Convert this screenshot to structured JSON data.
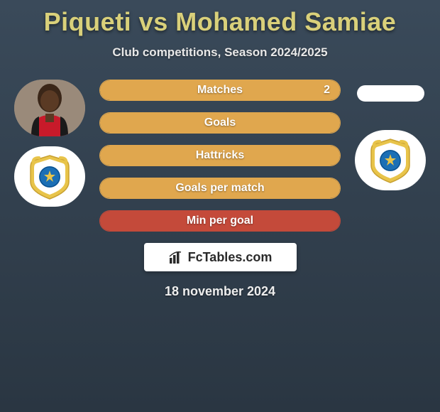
{
  "title": "Piqueti vs Mohamed Samiae",
  "subtitle": "Club competitions, Season 2024/2025",
  "date": "18 november 2024",
  "logo_text": "FcTables.com",
  "colors": {
    "title": "#d9d07a",
    "bar_orange_border": "#e0a74e",
    "bar_orange_fill": "#e0a74e",
    "bar_red_border": "#c44a3a",
    "bar_red_fill": "#c44a3a",
    "bar_bg": "rgba(255,255,255,0.05)",
    "shield_blue": "#1b6fb5",
    "shield_gold": "#e8c44a",
    "shield_white": "#ffffff"
  },
  "bars": [
    {
      "label": "Matches",
      "value": "2",
      "fill_pct": 100,
      "color": "orange"
    },
    {
      "label": "Goals",
      "value": "",
      "fill_pct": 100,
      "color": "orange"
    },
    {
      "label": "Hattricks",
      "value": "",
      "fill_pct": 100,
      "color": "orange"
    },
    {
      "label": "Goals per match",
      "value": "",
      "fill_pct": 100,
      "color": "orange"
    },
    {
      "label": "Min per goal",
      "value": "",
      "fill_pct": 100,
      "color": "red"
    }
  ],
  "left_player": {
    "name": "Piqueti",
    "avatar_bg": "#6a4a3a",
    "jersey": "#c81a2a"
  },
  "right_player": {
    "name": "Mohamed Samiae"
  },
  "club_badge": {
    "type": "shield-ball"
  }
}
